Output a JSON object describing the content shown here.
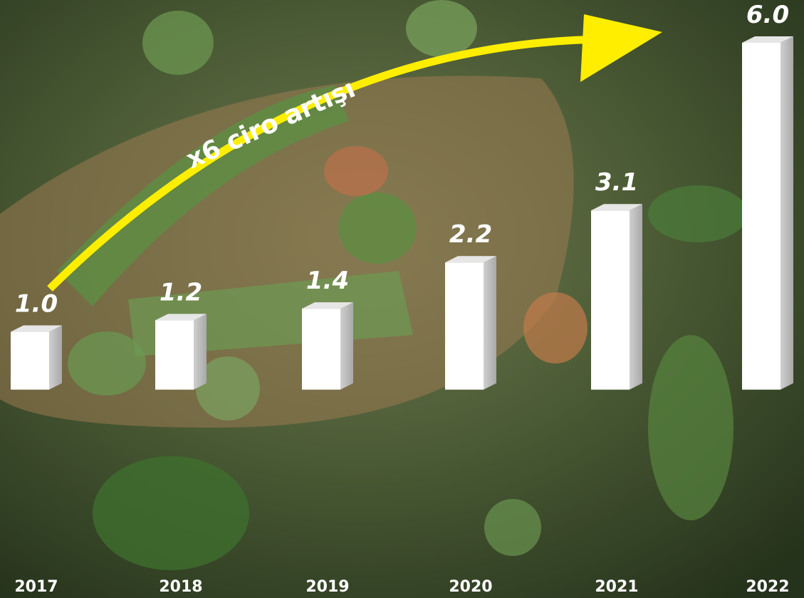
{
  "chart_data": {
    "type": "bar",
    "annotation": "x6 ciro artışı",
    "categories": [
      "2017",
      "2018",
      "2019",
      "2020",
      "2021",
      "2022"
    ],
    "values": [
      1.0,
      1.2,
      1.4,
      2.2,
      3.1,
      6.0
    ],
    "value_labels": [
      "1.0",
      "1.2",
      "1.4",
      "2.2",
      "3.1",
      "6.0"
    ],
    "color": "#ffffff",
    "arrow_color": "#ffee00",
    "ylim": [
      -3,
      6
    ]
  }
}
